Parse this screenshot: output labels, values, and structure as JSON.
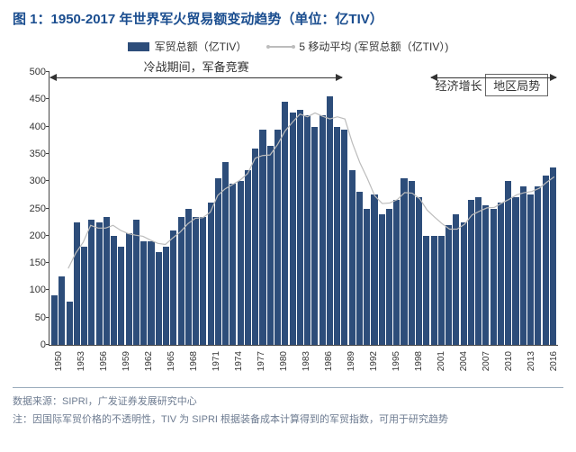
{
  "title": "图 1：1950-2017 年世界军火贸易额变动趋势（单位：亿TIV）",
  "legend": {
    "bar_label": "军贸总额（亿TIV）",
    "line_label": "5 移动平均 (军贸总额（亿TIV）)"
  },
  "annotations": {
    "left": "冷战期间，军备竞赛",
    "right_top": "经济增长",
    "right_bottom": "地区局势"
  },
  "footer": {
    "source": "数据来源：SIPRI，广发证券发展研究中心",
    "note": "注：因国际军贸价格的不透明性，TIV 为 SIPRI 根据装备成本计算得到的军贸指数，可用于研究趋势"
  },
  "chart": {
    "type": "bar+line",
    "ylim": [
      0,
      500
    ],
    "ytick_step": 50,
    "yticks": [
      0,
      50,
      100,
      150,
      200,
      250,
      300,
      350,
      400,
      450,
      500
    ],
    "bar_color": "#2d4d7a",
    "line_color": "#bcbcbc",
    "axis_color": "#444",
    "text_color": "#333",
    "title_color": "#1a4d8f",
    "footer_color": "#6e7c91",
    "background_color": "#ffffff",
    "title_fontsize": 15,
    "label_fontsize": 12,
    "tick_fontsize": 11,
    "xlabel_fontsize": 10,
    "line_width": 2.5,
    "years": [
      1950,
      1951,
      1952,
      1953,
      1954,
      1955,
      1956,
      1957,
      1958,
      1959,
      1960,
      1961,
      1962,
      1963,
      1964,
      1965,
      1966,
      1967,
      1968,
      1969,
      1970,
      1971,
      1972,
      1973,
      1974,
      1975,
      1976,
      1977,
      1978,
      1979,
      1980,
      1981,
      1982,
      1983,
      1984,
      1985,
      1986,
      1987,
      1988,
      1989,
      1990,
      1991,
      1992,
      1993,
      1994,
      1995,
      1996,
      1997,
      1998,
      1999,
      2000,
      2001,
      2002,
      2003,
      2004,
      2005,
      2006,
      2007,
      2008,
      2009,
      2010,
      2011,
      2012,
      2013,
      2014,
      2015,
      2016,
      2017
    ],
    "xtick_years": [
      1950,
      1953,
      1956,
      1959,
      1962,
      1965,
      1968,
      1971,
      1974,
      1977,
      1980,
      1983,
      1986,
      1989,
      1992,
      1995,
      1998,
      2001,
      2004,
      2007,
      2010,
      2013,
      2016
    ],
    "values": [
      90,
      125,
      80,
      225,
      180,
      230,
      225,
      235,
      200,
      180,
      205,
      230,
      190,
      190,
      170,
      180,
      210,
      235,
      250,
      235,
      235,
      260,
      305,
      335,
      295,
      300,
      320,
      360,
      395,
      365,
      395,
      445,
      425,
      430,
      420,
      400,
      420,
      455,
      400,
      395,
      320,
      280,
      250,
      275,
      240,
      250,
      265,
      305,
      300,
      270,
      200,
      200,
      200,
      220,
      240,
      225,
      265,
      270,
      255,
      250,
      260,
      300,
      270,
      290,
      275,
      290,
      310,
      325
    ],
    "moving_avg": [
      null,
      null,
      140,
      168,
      188,
      219,
      214,
      214,
      219,
      210,
      204,
      201,
      199,
      192,
      186,
      184,
      196,
      207,
      222,
      232,
      233,
      243,
      274,
      286,
      294,
      302,
      314,
      342,
      347,
      348,
      367,
      392,
      408,
      423,
      418,
      425,
      419,
      414,
      418,
      414,
      370,
      334,
      305,
      273,
      259,
      260,
      266,
      279,
      278,
      268,
      247,
      234,
      222,
      212,
      212,
      221,
      238,
      245,
      251,
      252,
      260,
      267,
      275,
      279,
      281,
      287,
      298,
      308
    ]
  }
}
